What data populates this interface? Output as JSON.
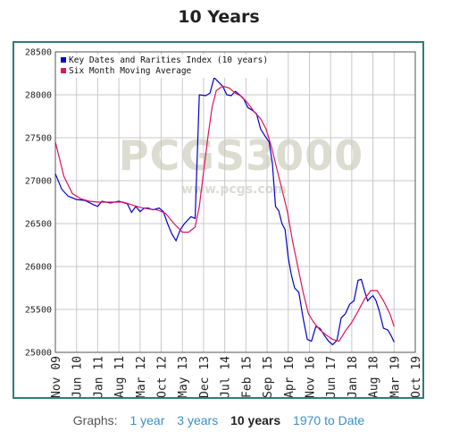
{
  "chart_title": "10 Years",
  "nav": {
    "label": "Graphs:",
    "links": [
      {
        "label": "1 year",
        "active": false
      },
      {
        "label": "3 years",
        "active": false
      },
      {
        "label": "10 years",
        "active": true
      },
      {
        "label": "1970 to Date",
        "active": false
      }
    ]
  },
  "watermark": {
    "main": "PCGS3000",
    "sub": "www.pcgs.com"
  },
  "colors": {
    "frame": "#2e7d76",
    "index": "#0000cc",
    "average": "#e0145a",
    "watermark": "#dcdcd0"
  },
  "chart_data": {
    "type": "line",
    "legend_position": "top-left",
    "grid": true,
    "ylim": [
      25000,
      28500
    ],
    "y_ticks": [
      25000,
      25500,
      26000,
      26500,
      27000,
      27500,
      28000,
      28500
    ],
    "x_tick_labels": [
      "Nov 09",
      "Jun 10",
      "Jan 11",
      "Aug 11",
      "Mar 12",
      "Oct 12",
      "May 13",
      "Dec 13",
      "Jul 14",
      "Feb 15",
      "Sep 15",
      "Apr 16",
      "Nov 16",
      "Jun 17",
      "Jan 18",
      "Aug 18",
      "Mar 19",
      "Oct 19"
    ],
    "series": [
      {
        "name": "Key Dates and Rarities Index (10 years)",
        "color": "#0000cc",
        "values": [
          [
            0,
            27080
          ],
          [
            0.3,
            26900
          ],
          [
            0.6,
            26820
          ],
          [
            1.0,
            26780
          ],
          [
            1.4,
            26770
          ],
          [
            1.8,
            26720
          ],
          [
            2.0,
            26700
          ],
          [
            2.2,
            26760
          ],
          [
            2.6,
            26740
          ],
          [
            3.0,
            26760
          ],
          [
            3.4,
            26730
          ],
          [
            3.6,
            26630
          ],
          [
            3.8,
            26700
          ],
          [
            4.0,
            26640
          ],
          [
            4.2,
            26680
          ],
          [
            4.4,
            26680
          ],
          [
            4.6,
            26660
          ],
          [
            4.9,
            26680
          ],
          [
            5.1,
            26640
          ],
          [
            5.3,
            26500
          ],
          [
            5.5,
            26380
          ],
          [
            5.7,
            26300
          ],
          [
            5.9,
            26430
          ],
          [
            6.1,
            26500
          ],
          [
            6.4,
            26580
          ],
          [
            6.6,
            26560
          ],
          [
            6.8,
            28000
          ],
          [
            7.1,
            27990
          ],
          [
            7.3,
            28020
          ],
          [
            7.5,
            28200
          ],
          [
            7.7,
            28150
          ],
          [
            7.9,
            28100
          ],
          [
            8.1,
            28000
          ],
          [
            8.3,
            27990
          ],
          [
            8.5,
            28040
          ],
          [
            8.7,
            28000
          ],
          [
            8.9,
            27950
          ],
          [
            9.1,
            27850
          ],
          [
            9.3,
            27820
          ],
          [
            9.5,
            27780
          ],
          [
            9.7,
            27600
          ],
          [
            9.9,
            27520
          ],
          [
            10.1,
            27450
          ],
          [
            10.25,
            27200
          ],
          [
            10.4,
            26700
          ],
          [
            10.55,
            26650
          ],
          [
            10.7,
            26500
          ],
          [
            10.85,
            26430
          ],
          [
            11.0,
            26100
          ],
          [
            11.15,
            25900
          ],
          [
            11.3,
            25750
          ],
          [
            11.5,
            25700
          ],
          [
            11.7,
            25400
          ],
          [
            11.9,
            25150
          ],
          [
            12.1,
            25130
          ],
          [
            12.3,
            25300
          ],
          [
            12.5,
            25280
          ],
          [
            12.7,
            25200
          ],
          [
            12.9,
            25130
          ],
          [
            13.1,
            25090
          ],
          [
            13.3,
            25140
          ],
          [
            13.5,
            25400
          ],
          [
            13.7,
            25450
          ],
          [
            13.9,
            25560
          ],
          [
            14.1,
            25600
          ],
          [
            14.3,
            25840
          ],
          [
            14.45,
            25850
          ],
          [
            14.6,
            25720
          ],
          [
            14.75,
            25600
          ],
          [
            14.9,
            25640
          ],
          [
            15.0,
            25660
          ],
          [
            15.15,
            25600
          ],
          [
            15.3,
            25480
          ],
          [
            15.5,
            25280
          ],
          [
            15.7,
            25260
          ],
          [
            15.85,
            25200
          ],
          [
            16.0,
            25120
          ]
        ]
      },
      {
        "name": "Six Month Moving Average",
        "color": "#e0145a",
        "values": [
          [
            0,
            27450
          ],
          [
            0.4,
            27050
          ],
          [
            0.8,
            26850
          ],
          [
            1.2,
            26790
          ],
          [
            1.6,
            26760
          ],
          [
            2.0,
            26750
          ],
          [
            2.4,
            26750
          ],
          [
            2.8,
            26750
          ],
          [
            3.2,
            26750
          ],
          [
            3.6,
            26720
          ],
          [
            4.0,
            26690
          ],
          [
            4.4,
            26670
          ],
          [
            4.8,
            26660
          ],
          [
            5.2,
            26620
          ],
          [
            5.6,
            26500
          ],
          [
            6.0,
            26400
          ],
          [
            6.3,
            26400
          ],
          [
            6.6,
            26460
          ],
          [
            6.8,
            26700
          ],
          [
            7.0,
            27100
          ],
          [
            7.2,
            27500
          ],
          [
            7.4,
            27850
          ],
          [
            7.6,
            28050
          ],
          [
            7.9,
            28100
          ],
          [
            8.2,
            28080
          ],
          [
            8.5,
            28020
          ],
          [
            8.8,
            27980
          ],
          [
            9.1,
            27900
          ],
          [
            9.4,
            27800
          ],
          [
            9.7,
            27720
          ],
          [
            9.95,
            27600
          ],
          [
            10.2,
            27400
          ],
          [
            10.45,
            27150
          ],
          [
            10.7,
            26900
          ],
          [
            10.95,
            26650
          ],
          [
            11.2,
            26300
          ],
          [
            11.45,
            26000
          ],
          [
            11.7,
            25700
          ],
          [
            11.95,
            25450
          ],
          [
            12.2,
            25350
          ],
          [
            12.5,
            25260
          ],
          [
            12.8,
            25200
          ],
          [
            13.1,
            25150
          ],
          [
            13.4,
            25130
          ],
          [
            13.7,
            25250
          ],
          [
            14.0,
            25350
          ],
          [
            14.3,
            25480
          ],
          [
            14.6,
            25620
          ],
          [
            14.9,
            25720
          ],
          [
            15.2,
            25720
          ],
          [
            15.5,
            25600
          ],
          [
            15.8,
            25450
          ],
          [
            16.0,
            25300
          ]
        ]
      }
    ]
  }
}
